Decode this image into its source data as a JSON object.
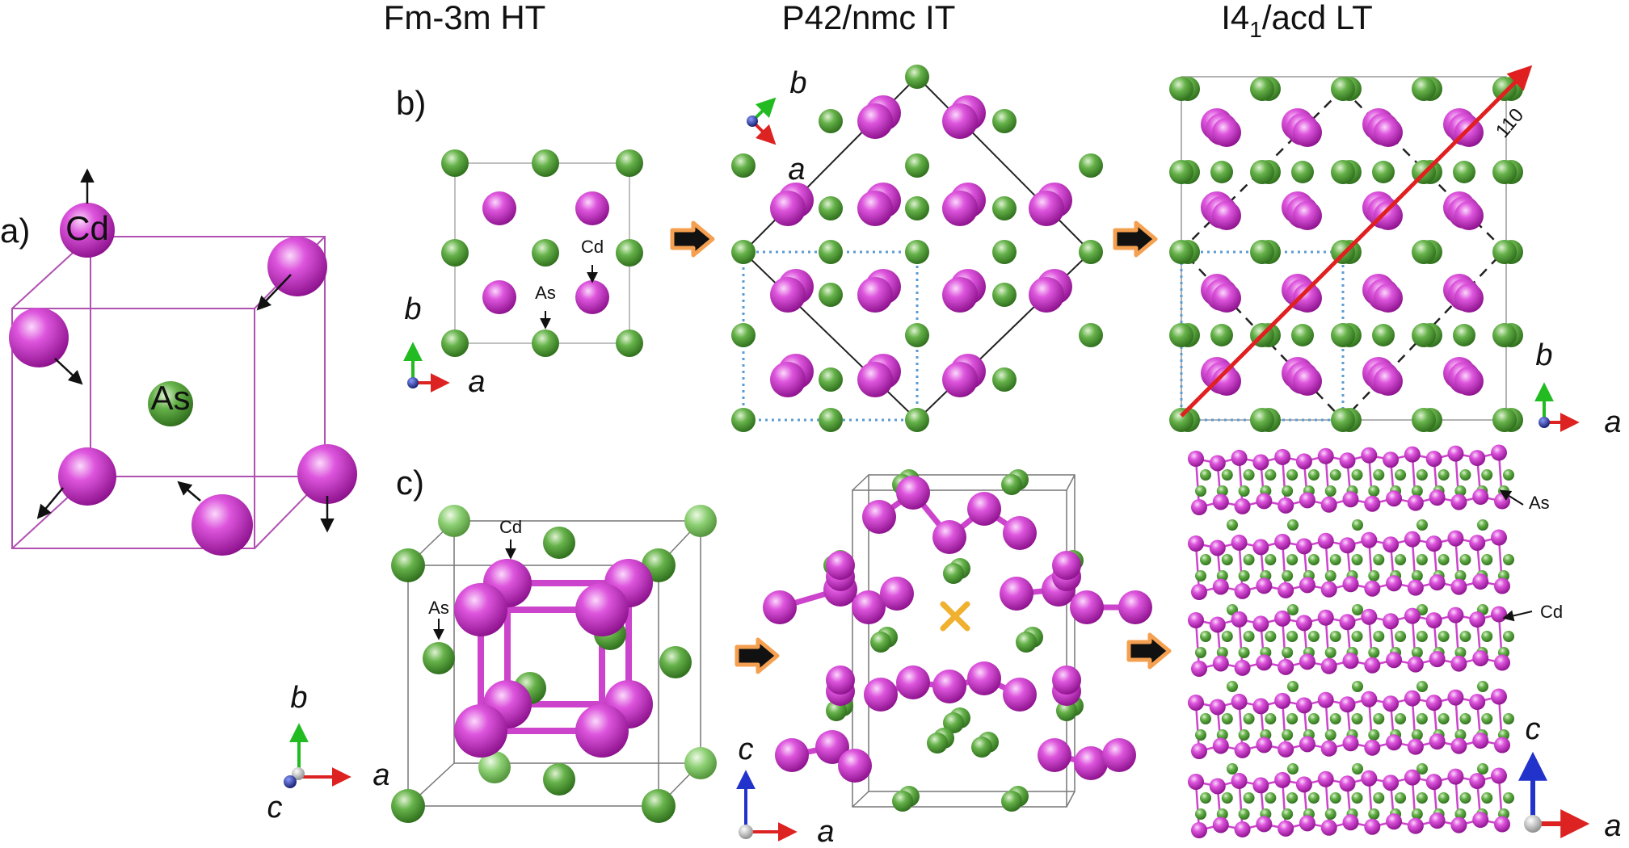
{
  "titles": {
    "ht": "Fm-3m HT",
    "it": "P42/nmc IT",
    "lt_pre": "I4",
    "lt_sub": "1",
    "lt_post": "/acd LT"
  },
  "panels": {
    "a": "a)",
    "b": "b)",
    "c": "c)"
  },
  "atoms": {
    "cd": "Cd",
    "as": "As"
  },
  "axes": {
    "a": "a",
    "b": "b",
    "c": "c"
  },
  "direction": "110",
  "colors": {
    "cd": "#cc33cc",
    "as": "#4f9a35",
    "bond": "#cc44cc",
    "transition_arrow": "#f5a050",
    "direction_arrow": "#e02020",
    "dotted_cell": "#5b9bd5",
    "axis_x": "#dd2222",
    "axis_y": "#22bb22",
    "axis_z": "#2233cc",
    "cross": "#f0b030"
  }
}
